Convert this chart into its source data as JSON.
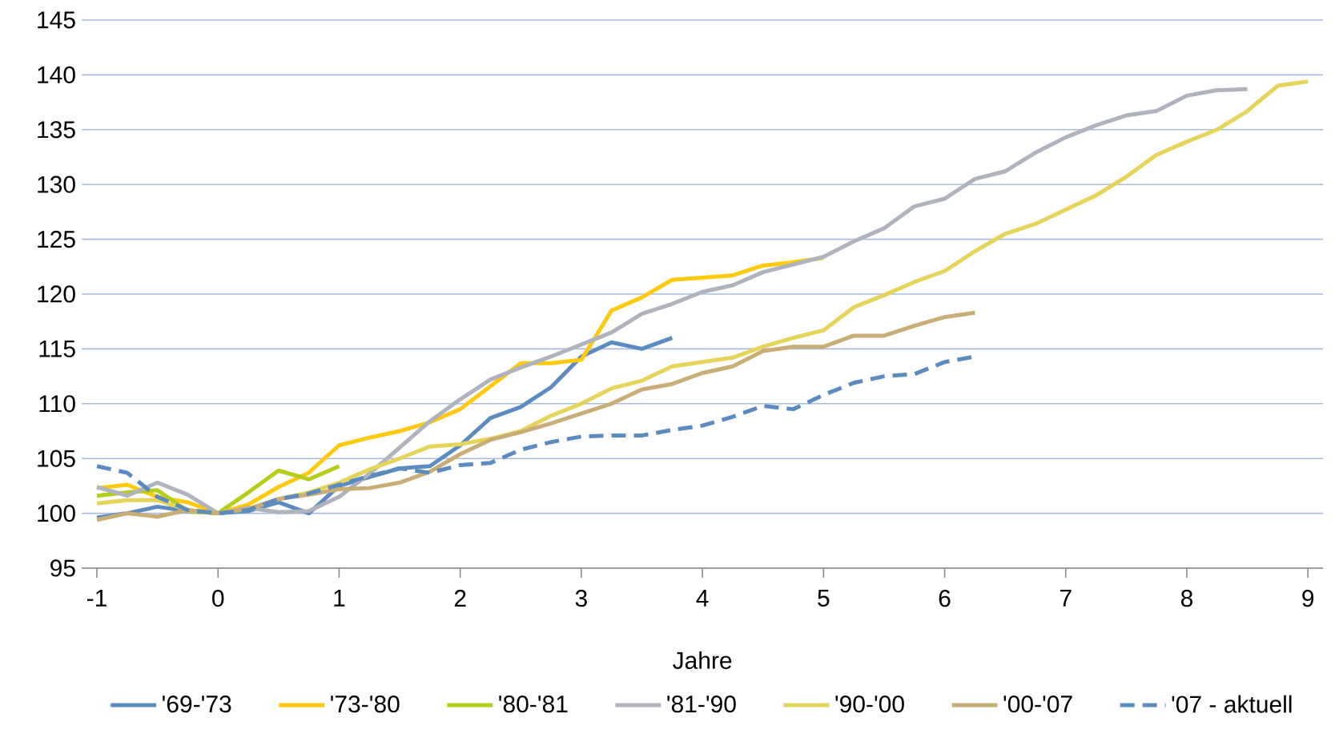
{
  "chart_data": {
    "type": "line",
    "xlabel": "Jahre",
    "x": [
      -1,
      -0.75,
      -0.5,
      -0.25,
      0,
      0.25,
      0.5,
      0.75,
      1,
      1.25,
      1.5,
      1.75,
      2,
      2.25,
      2.5,
      2.75,
      3,
      3.25,
      3.5,
      3.75,
      4,
      4.25,
      4.5,
      4.75,
      5,
      5.25,
      5.5,
      5.75,
      6,
      6.25,
      6.5,
      6.75,
      7,
      7.25,
      7.5,
      7.75,
      8,
      8.25,
      8.5,
      8.75,
      9
    ],
    "xlim": [
      -1.125,
      9.125
    ],
    "xticks": [
      -1,
      0,
      1,
      2,
      3,
      4,
      5,
      6,
      7,
      8,
      9
    ],
    "ylim": [
      95,
      145
    ],
    "yticks": [
      95,
      100,
      105,
      110,
      115,
      120,
      125,
      130,
      135,
      140,
      145
    ],
    "grid": "y",
    "legend": "bottom",
    "marker": "none",
    "series": [
      {
        "name": "'69-'73",
        "color": "#5b8bbf",
        "line_style": "solid",
        "values": [
          99.6,
          100.0,
          100.6,
          100.2,
          100.0,
          100.2,
          101.0,
          100.0,
          102.5,
          103.3,
          104.1,
          104.3,
          106.2,
          108.7,
          109.7,
          111.5,
          114.3,
          115.6,
          115.0,
          116.0,
          null,
          null,
          null,
          null,
          null,
          null,
          null,
          null,
          null,
          null,
          null,
          null,
          null,
          null,
          null,
          null,
          null,
          null,
          null,
          null,
          null
        ]
      },
      {
        "name": "'73-'80",
        "color": "#ffc90e",
        "line_style": "solid",
        "values": [
          102.3,
          102.6,
          101.5,
          101.0,
          100.0,
          100.8,
          102.4,
          103.7,
          106.2,
          106.9,
          107.5,
          108.3,
          109.5,
          111.6,
          113.7,
          113.7,
          114.0,
          118.5,
          119.7,
          121.3,
          121.5,
          121.7,
          122.6,
          122.9,
          123.3,
          null,
          null,
          null,
          null,
          null,
          null,
          null,
          null,
          null,
          null,
          null,
          null,
          null,
          null,
          null,
          null
        ]
      },
      {
        "name": "'80-'81",
        "color": "#b5cc18",
        "line_style": "solid",
        "values": [
          101.6,
          101.9,
          102.1,
          100.2,
          100.0,
          101.9,
          103.9,
          103.1,
          104.3,
          null,
          null,
          null,
          null,
          null,
          null,
          null,
          null,
          null,
          null,
          null,
          null,
          null,
          null,
          null,
          null,
          null,
          null,
          null,
          null,
          null,
          null,
          null,
          null,
          null,
          null,
          null,
          null,
          null,
          null,
          null,
          null
        ]
      },
      {
        "name": "'81-'90",
        "color": "#aeb3bd",
        "line_style": "solid",
        "values": [
          102.4,
          101.6,
          102.8,
          101.7,
          100.0,
          100.5,
          100.1,
          100.2,
          101.5,
          103.6,
          106.0,
          108.4,
          110.4,
          112.2,
          113.3,
          114.3,
          115.4,
          116.5,
          118.2,
          119.1,
          120.2,
          120.8,
          122.0,
          122.7,
          123.4,
          124.8,
          126.0,
          128.0,
          128.7,
          130.5,
          131.2,
          132.9,
          134.3,
          135.4,
          136.3,
          136.7,
          138.1,
          138.6,
          138.7,
          null,
          null
        ]
      },
      {
        "name": "'90-'00",
        "color": "#e6d35a",
        "line_style": "solid",
        "values": [
          100.9,
          101.2,
          101.2,
          100.3,
          100.0,
          100.4,
          101.3,
          101.9,
          102.8,
          104.0,
          105.0,
          106.1,
          106.3,
          106.8,
          107.5,
          108.9,
          110.0,
          111.4,
          112.1,
          113.4,
          113.8,
          114.2,
          115.2,
          116.0,
          116.7,
          118.8,
          119.9,
          121.1,
          122.1,
          123.9,
          125.5,
          126.4,
          127.7,
          129.0,
          130.7,
          132.7,
          133.9,
          135.0,
          136.7,
          139.0,
          139.4
        ]
      },
      {
        "name": "'00-'07",
        "color": "#c9ad77",
        "line_style": "solid",
        "values": [
          99.4,
          100.0,
          99.7,
          100.3,
          100.0,
          100.4,
          101.3,
          101.7,
          102.2,
          102.3,
          102.8,
          103.8,
          105.4,
          106.7,
          107.4,
          108.2,
          109.1,
          110.0,
          111.3,
          111.8,
          112.8,
          113.4,
          114.8,
          115.2,
          115.2,
          116.2,
          116.2,
          117.1,
          117.9,
          118.3,
          null,
          null,
          null,
          null,
          null,
          null,
          null,
          null,
          null,
          null,
          null
        ]
      },
      {
        "name": "'07 - aktuell",
        "color": "#5b8bbf",
        "line_style": "dashed",
        "values": [
          104.3,
          103.7,
          101.5,
          100.3,
          100.0,
          100.3,
          101.3,
          101.8,
          102.6,
          103.4,
          104.1,
          103.7,
          104.4,
          104.6,
          105.8,
          106.5,
          107.0,
          107.1,
          107.1,
          107.6,
          108.0,
          108.8,
          109.8,
          109.5,
          110.8,
          111.9,
          112.5,
          112.7,
          113.8,
          114.3,
          null,
          null,
          null,
          null,
          null,
          null,
          null,
          null,
          null,
          null,
          null
        ]
      }
    ]
  }
}
